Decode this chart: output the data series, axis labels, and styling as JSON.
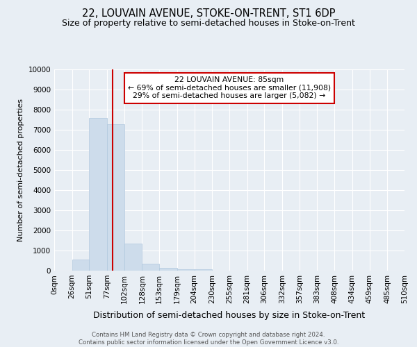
{
  "title": "22, LOUVAIN AVENUE, STOKE-ON-TRENT, ST1 6DP",
  "subtitle": "Size of property relative to semi-detached houses in Stoke-on-Trent",
  "xlabel": "Distribution of semi-detached houses by size in Stoke-on-Trent",
  "ylabel": "Number of semi-detached properties",
  "footnote": "Contains HM Land Registry data © Crown copyright and database right 2024.\nContains public sector information licensed under the Open Government Licence v3.0.",
  "bin_edges": [
    0,
    26,
    51,
    77,
    102,
    128,
    153,
    179,
    204,
    230,
    255,
    281,
    306,
    332,
    357,
    383,
    408,
    434,
    459,
    485,
    510
  ],
  "bar_heights": [
    0,
    560,
    7600,
    7280,
    1340,
    330,
    155,
    85,
    70,
    0,
    0,
    0,
    0,
    0,
    0,
    0,
    0,
    0,
    0,
    0
  ],
  "bar_color": "#cddceb",
  "bar_edge_color": "#b0c8de",
  "property_size": 85,
  "property_line_color": "#cc0000",
  "annotation_box_color": "#ffffff",
  "annotation_box_edge": "#cc0000",
  "annotation_title": "22 LOUVAIN AVENUE: 85sqm",
  "annotation_line1": "← 69% of semi-detached houses are smaller (11,908)",
  "annotation_line2": "29% of semi-detached houses are larger (5,082) →",
  "ylim": [
    0,
    10000
  ],
  "yticks": [
    0,
    1000,
    2000,
    3000,
    4000,
    5000,
    6000,
    7000,
    8000,
    9000,
    10000
  ],
  "background_color": "#e8eef4",
  "grid_color": "#ffffff",
  "title_fontsize": 10.5,
  "subtitle_fontsize": 9,
  "tick_fontsize": 7.5,
  "ylabel_fontsize": 8,
  "xlabel_fontsize": 9
}
